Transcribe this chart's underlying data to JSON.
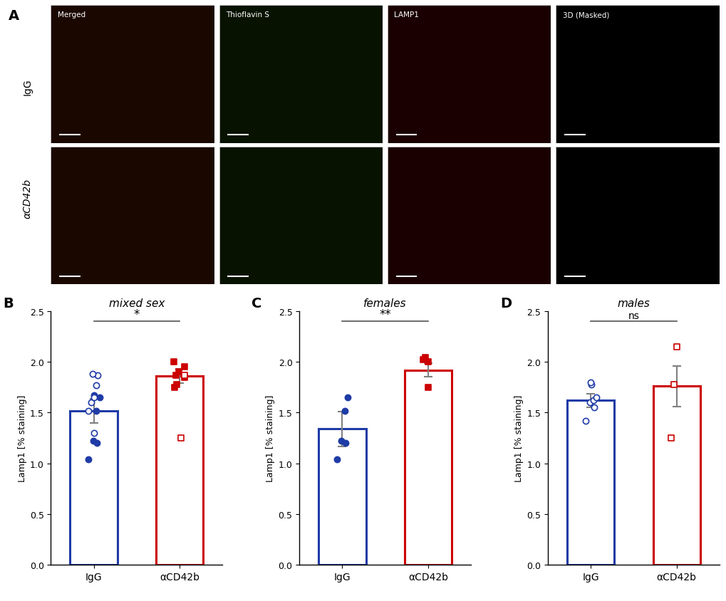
{
  "panel_B": {
    "title": "mixed sex",
    "IgG_bar_mean": 1.52,
    "IgG_bar_sem": 0.12,
    "aCD42b_bar_mean": 1.86,
    "aCD42b_bar_sem": 0.07,
    "IgG_filled_circles": [
      1.04,
      1.2,
      1.22,
      1.52,
      1.65,
      1.67
    ],
    "IgG_open_circles": [
      1.3,
      1.52,
      1.6,
      1.65,
      1.77,
      1.87,
      1.88
    ],
    "aCD42b_filled_squares": [
      1.75,
      1.78,
      1.85,
      1.87,
      1.9,
      1.95,
      2.0
    ],
    "aCD42b_open_squares": [
      1.25,
      1.87
    ],
    "sig_label": "*",
    "bar_color_IgG": "#1f3ba6",
    "bar_color_aCD42b": "#cc0000"
  },
  "panel_C": {
    "title": "females",
    "IgG_bar_mean": 1.34,
    "IgG_bar_sem": 0.17,
    "aCD42b_bar_mean": 1.92,
    "aCD42b_bar_sem": 0.065,
    "IgG_filled_circles": [
      1.04,
      1.2,
      1.22,
      1.52,
      1.65
    ],
    "IgG_open_circles": [],
    "aCD42b_filled_squares": [
      1.75,
      2.0,
      2.02,
      2.04
    ],
    "aCD42b_open_squares": [],
    "sig_label": "**",
    "bar_color_IgG": "#1f3ba6",
    "bar_color_aCD42b": "#cc0000"
  },
  "panel_D": {
    "title": "males",
    "IgG_bar_mean": 1.62,
    "IgG_bar_sem": 0.065,
    "aCD42b_bar_mean": 1.76,
    "aCD42b_bar_sem": 0.2,
    "IgG_filled_circles": [],
    "IgG_open_circles": [
      1.42,
      1.55,
      1.6,
      1.62,
      1.65,
      1.78,
      1.8
    ],
    "aCD42b_filled_squares": [],
    "aCD42b_open_squares": [
      1.25,
      1.78,
      2.15
    ],
    "sig_label": "ns",
    "bar_color_IgG": "#1f3ba6",
    "bar_color_aCD42b": "#cc0000"
  },
  "ylabel": "Lamp1 [% staining]",
  "ylim": [
    0,
    2.5
  ],
  "yticks": [
    0.0,
    0.5,
    1.0,
    1.5,
    2.0,
    2.5
  ],
  "xtick_labels": [
    "IgG",
    "αCD42b"
  ],
  "panel_labels": [
    "B",
    "C",
    "D"
  ],
  "sig_line_color": "#555555",
  "scatter_size": 35,
  "bar_linewidth": 2.2,
  "errorbar_linewidth": 1.5,
  "errorbar_capsize": 4,
  "micro_labels": [
    "Merged",
    "Thioflavin S",
    "LAMP1",
    "3D (Masked)"
  ],
  "row_labels": [
    "IgG",
    "αCD42b"
  ]
}
